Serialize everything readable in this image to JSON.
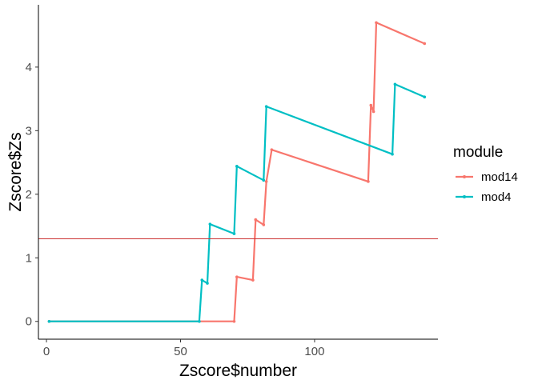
{
  "chart_data": {
    "type": "line",
    "title": "",
    "xlabel": "Zscore$number",
    "ylabel": "Zscore$Zs",
    "xlim": [
      -3,
      146
    ],
    "ylim": [
      -0.28,
      4.98
    ],
    "x_ticks": [
      0,
      50,
      100
    ],
    "x_tick_labels": [
      "0",
      "50",
      "100"
    ],
    "y_ticks": [
      0,
      1,
      2,
      3,
      4
    ],
    "y_tick_labels": [
      "0",
      "1",
      "2",
      "3",
      "4"
    ],
    "grid": false,
    "legend_title": "module",
    "legend_position": "right",
    "hline": {
      "y": 1.3,
      "color": "#cc3333"
    },
    "series": [
      {
        "name": "mod14",
        "color": "#F8766D",
        "points": [
          [
            1,
            0
          ],
          [
            70,
            0
          ],
          [
            71,
            0.7
          ],
          [
            77,
            0.65
          ],
          [
            78,
            1.6
          ],
          [
            81,
            1.52
          ],
          [
            82,
            2.2
          ],
          [
            84,
            2.7
          ],
          [
            120,
            2.2
          ],
          [
            121,
            3.4
          ],
          [
            122,
            3.3
          ],
          [
            123,
            4.7
          ],
          [
            141,
            4.37
          ]
        ]
      },
      {
        "name": "mod4",
        "color": "#00BFC4",
        "points": [
          [
            1,
            0
          ],
          [
            57,
            0
          ],
          [
            58,
            0.65
          ],
          [
            60,
            0.6
          ],
          [
            61,
            1.53
          ],
          [
            70,
            1.38
          ],
          [
            71,
            2.44
          ],
          [
            81,
            2.22
          ],
          [
            82,
            3.38
          ],
          [
            129,
            2.63
          ],
          [
            130,
            3.73
          ],
          [
            141,
            3.53
          ]
        ]
      }
    ]
  }
}
